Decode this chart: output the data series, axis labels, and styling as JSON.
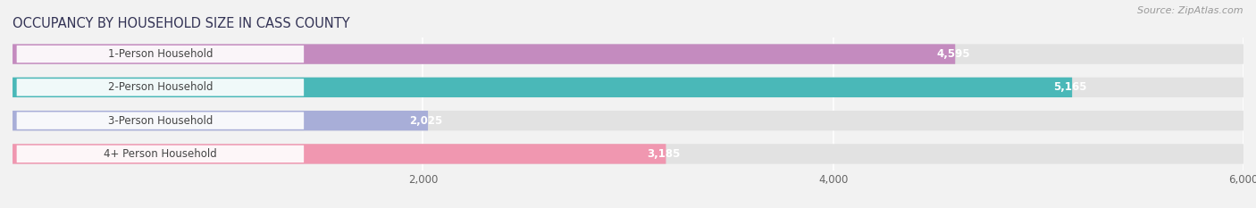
{
  "title": "OCCUPANCY BY HOUSEHOLD SIZE IN CASS COUNTY",
  "source": "Source: ZipAtlas.com",
  "categories": [
    "1-Person Household",
    "2-Person Household",
    "3-Person Household",
    "4+ Person Household"
  ],
  "values": [
    4595,
    5165,
    2025,
    3185
  ],
  "bar_colors": [
    "#c48bbf",
    "#4ab8b8",
    "#a8aed8",
    "#f097b0"
  ],
  "xlim": [
    0,
    6000
  ],
  "xticks": [
    2000,
    4000,
    6000
  ],
  "background_color": "#f2f2f2",
  "bar_bg_color": "#e2e2e2",
  "bar_label_bg": "#ffffff",
  "label_color": "#666666",
  "value_color": "#ffffff",
  "title_color": "#333355",
  "source_color": "#999999",
  "figsize": [
    14.06,
    2.33
  ],
  "dpi": 100
}
